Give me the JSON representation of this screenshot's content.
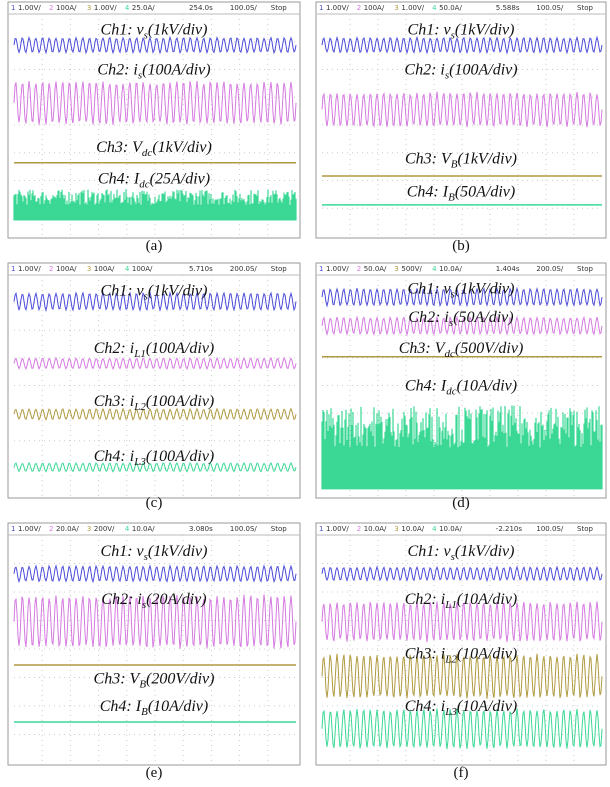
{
  "panels": [
    {
      "header": {
        "channels": [
          {
            "num": "1",
            "scale": "1.00V/"
          },
          {
            "num": "2",
            "scale": "100A/"
          },
          {
            "num": "3",
            "scale": "1.00V/"
          },
          {
            "num": "4",
            "scale": "25.0A/"
          }
        ],
        "time": "254.0s",
        "rate": "100.0S/",
        "state": "Stop"
      },
      "labels": [
        {
          "pre": "Ch1: v",
          "sub": "s",
          "post": "(1kV/div)"
        },
        {
          "pre": "Ch2: i",
          "sub": "s",
          "post": "(100A/div)"
        },
        {
          "pre": "Ch3: V",
          "sub": "dc",
          "post": "(1kV/div)"
        },
        {
          "pre": "Ch4: I",
          "sub": "dc",
          "post": "(25A/div)"
        }
      ],
      "caption": "(a)"
    },
    {
      "header": {
        "channels": [
          {
            "num": "1",
            "scale": "1.00V/"
          },
          {
            "num": "2",
            "scale": "100A/"
          },
          {
            "num": "3",
            "scale": "1.00V/"
          },
          {
            "num": "4",
            "scale": "50.0A/"
          }
        ],
        "time": "5.588s",
        "rate": "100.0S/",
        "state": "Stop"
      },
      "labels": [
        {
          "pre": "Ch1: v",
          "sub": "s",
          "post": "(1kV/div)"
        },
        {
          "pre": "Ch2: i",
          "sub": "s",
          "post": "(100A/div)"
        },
        {
          "pre": "Ch3: V",
          "sub": "B",
          "post": "(1kV/div)"
        },
        {
          "pre": "Ch4: I",
          "sub": "B",
          "post": "(50A/div)"
        }
      ],
      "caption": "(b)"
    },
    {
      "header": {
        "channels": [
          {
            "num": "1",
            "scale": "1.00V/"
          },
          {
            "num": "2",
            "scale": "100A/"
          },
          {
            "num": "3",
            "scale": "100A/"
          },
          {
            "num": "4",
            "scale": "100A/"
          }
        ],
        "time": "5.710s",
        "rate": "200.0S/",
        "state": "Stop"
      },
      "labels": [
        {
          "pre": "Ch1: v",
          "sub": "s",
          "post": "(1kV/div)"
        },
        {
          "pre": "Ch2: i",
          "sub": "L1",
          "post": "(100A/div)"
        },
        {
          "pre": "Ch3: i",
          "sub": "L2",
          "post": "(100A/div)"
        },
        {
          "pre": "Ch4: i",
          "sub": "L3",
          "post": "(100A/div)"
        }
      ],
      "caption": "(c)"
    },
    {
      "header": {
        "channels": [
          {
            "num": "1",
            "scale": "1.00V/"
          },
          {
            "num": "2",
            "scale": "50.0A/"
          },
          {
            "num": "3",
            "scale": "500V/"
          },
          {
            "num": "4",
            "scale": "10.0A/"
          }
        ],
        "time": "1.404s",
        "rate": "200.0S/",
        "state": "Stop"
      },
      "labels": [
        {
          "pre": "Ch1: v",
          "sub": "s",
          "post": "(1kV/div)"
        },
        {
          "pre": "Ch2: i",
          "sub": "s",
          "post": "(50A/div)"
        },
        {
          "pre": "Ch3: V",
          "sub": "dc",
          "post": "(500V/div)"
        },
        {
          "pre": "Ch4: I",
          "sub": "dc",
          "post": "(10A/div)"
        }
      ],
      "caption": "(d)"
    },
    {
      "header": {
        "channels": [
          {
            "num": "1",
            "scale": "1.00V/"
          },
          {
            "num": "2",
            "scale": "20.0A/"
          },
          {
            "num": "3",
            "scale": "200V/"
          },
          {
            "num": "4",
            "scale": "10.0A/"
          }
        ],
        "time": "3.080s",
        "rate": "100.0S/",
        "state": "Stop"
      },
      "labels": [
        {
          "pre": "Ch1: v",
          "sub": "s",
          "post": "(1kV/div)"
        },
        {
          "pre": "Ch2: i",
          "sub": "s",
          "post": "(20A/div)"
        },
        {
          "pre": "Ch3: V",
          "sub": "B",
          "post": "(200V/div)"
        },
        {
          "pre": "Ch4: I",
          "sub": "B",
          "post": "(10A/div)"
        }
      ],
      "caption": "(e)"
    },
    {
      "header": {
        "channels": [
          {
            "num": "1",
            "scale": "1.00V/"
          },
          {
            "num": "2",
            "scale": "10.0A/"
          },
          {
            "num": "3",
            "scale": "10.0A/"
          },
          {
            "num": "4",
            "scale": "10.0A/"
          }
        ],
        "time": "-2.210s",
        "rate": "100.0S/",
        "state": "Stop"
      },
      "labels": [
        {
          "pre": "Ch1: v",
          "sub": "s",
          "post": "(1kV/div)"
        },
        {
          "pre": "Ch2: i",
          "sub": "L1",
          "post": "(10A/div)"
        },
        {
          "pre": "Ch3: i",
          "sub": "L2",
          "post": "(10A/div)"
        },
        {
          "pre": "Ch4: i",
          "sub": "L3",
          "post": "(10A/div)"
        }
      ],
      "caption": "(f)"
    }
  ]
}
